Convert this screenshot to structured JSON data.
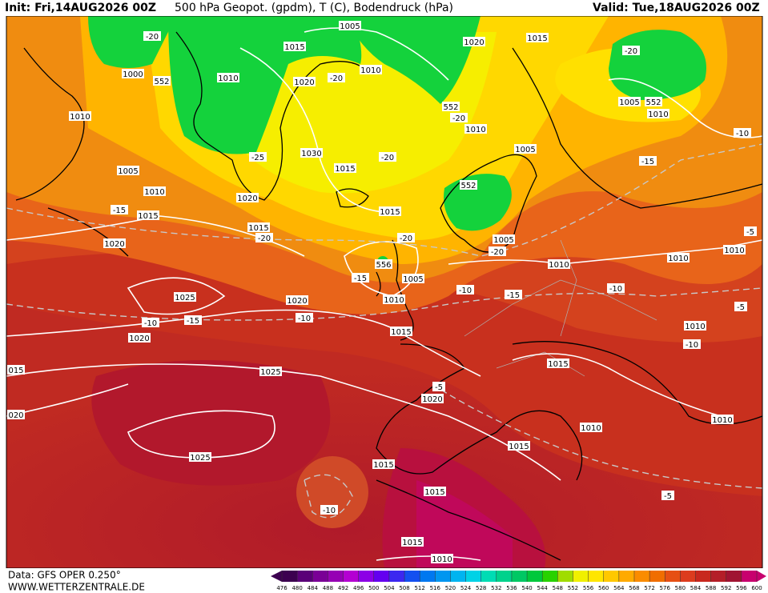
{
  "header": {
    "init": "Init: Fri,14AUG2026 00Z",
    "title": "500 hPa Geopot. (gpdm), T (C), Bodendruck (hPa)",
    "valid": "Valid: Tue,18AUG2026 00Z"
  },
  "footer": {
    "data": "Data: GFS OPER 0.250°",
    "site": "WWW.WETTERZENTRALE.DE"
  },
  "colorbar": {
    "ticks": [
      476,
      480,
      484,
      488,
      492,
      496,
      500,
      504,
      508,
      512,
      516,
      520,
      524,
      528,
      532,
      536,
      540,
      544,
      548,
      552,
      556,
      560,
      564,
      568,
      572,
      576,
      580,
      584,
      588,
      592,
      596,
      600
    ],
    "colors": [
      "#3c0050",
      "#5a0078",
      "#7a0096",
      "#9600b4",
      "#b400d2",
      "#8c00e6",
      "#6400f0",
      "#3c28f0",
      "#1450f0",
      "#0078f0",
      "#0096f0",
      "#00b4f0",
      "#00d2e6",
      "#00dcb4",
      "#00d28c",
      "#00c864",
      "#00c83c",
      "#28d200",
      "#a0dc00",
      "#f0f000",
      "#ffe600",
      "#ffc800",
      "#ffaa00",
      "#fa8c00",
      "#f06e00",
      "#e65014",
      "#dc3c1e",
      "#c8281e",
      "#b41e28",
      "#a01432",
      "#c8006e"
    ]
  },
  "map_labels": [
    "1005",
    "-20",
    "1015",
    "1020",
    "1015",
    "-20",
    "1000",
    "552",
    "1010",
    "1020",
    "-20",
    "1010",
    "552",
    "-20",
    "1005",
    "552",
    "1010",
    "1010",
    "1010",
    "-10",
    "1005",
    "1030",
    "-25",
    "-20",
    "1015",
    "-15",
    "1005",
    "552",
    "1010",
    "1020",
    "1015",
    "-15",
    "1015",
    "1015",
    "-20",
    "-20",
    "1005",
    "-5",
    "1020",
    "1010",
    "1010",
    "-20",
    "1010",
    "556",
    "-15",
    "1005",
    "-10",
    "-10",
    "-15",
    "1025",
    "1020",
    "1010",
    "-5",
    "-10",
    "-10",
    "-15",
    "1010",
    "1015",
    "-10",
    "1020",
    "1015",
    "015",
    "1025",
    "-5",
    "1020",
    "020",
    "1010",
    "1010",
    "1015",
    "1025",
    "1015",
    "1015",
    "-5",
    "-10",
    "1015",
    "1010"
  ]
}
